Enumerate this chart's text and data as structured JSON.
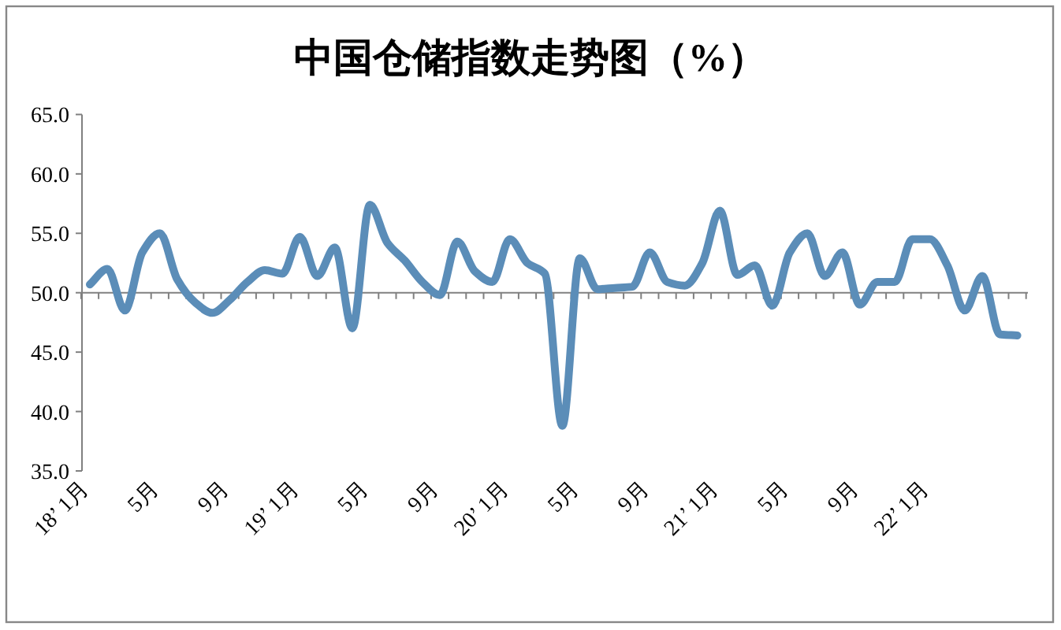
{
  "chart_data": {
    "type": "line",
    "title": "中国仓储指数走势图（%）",
    "categories": [
      "18’ 1月",
      null,
      null,
      null,
      "5月",
      null,
      null,
      null,
      "9月",
      null,
      null,
      null,
      "19’ 1月",
      null,
      null,
      null,
      "5月",
      null,
      null,
      null,
      "9月",
      null,
      null,
      null,
      "20’ 1月",
      null,
      null,
      null,
      "5月",
      null,
      null,
      null,
      "9月",
      null,
      null,
      null,
      "21’ 1月",
      null,
      null,
      null,
      "5月",
      null,
      null,
      null,
      "9月",
      null,
      null,
      null,
      "22’ 1月",
      null,
      null,
      null,
      null,
      null
    ],
    "series": [
      {
        "color": "#5b8db8",
        "values": [
          50.7,
          52.0,
          48.5,
          53.4,
          55.0,
          51.1,
          49.2,
          48.3,
          49.4,
          50.9,
          51.9,
          51.6,
          54.7,
          51.4,
          53.8,
          47.0,
          57.4,
          54.2,
          52.7,
          50.9,
          49.8,
          54.3,
          51.8,
          50.9,
          54.5,
          52.5,
          51.6,
          38.8,
          52.9,
          50.3,
          50.4,
          50.5,
          53.4,
          50.9,
          50.6,
          52.5,
          56.9,
          51.5,
          52.3,
          48.9,
          53.4,
          55.0,
          51.4,
          53.4,
          49.0,
          50.9,
          50.9,
          54.5,
          54.5,
          52.3,
          48.5,
          51.4,
          46.5,
          46.4
        ]
      }
    ],
    "ylim": [
      35,
      65
    ],
    "yticks": [
      {
        "value": 35,
        "label": "35.0"
      },
      {
        "value": 40,
        "label": "40.0"
      },
      {
        "value": 45,
        "label": "45.0"
      },
      {
        "value": 50,
        "label": "50.0"
      },
      {
        "value": 55,
        "label": "55.0"
      },
      {
        "value": 60,
        "label": "60.0"
      },
      {
        "value": 65,
        "label": "65.0"
      }
    ],
    "ref_lines": [
      {
        "axis": "y",
        "value": 50,
        "color": "#808080"
      }
    ]
  }
}
